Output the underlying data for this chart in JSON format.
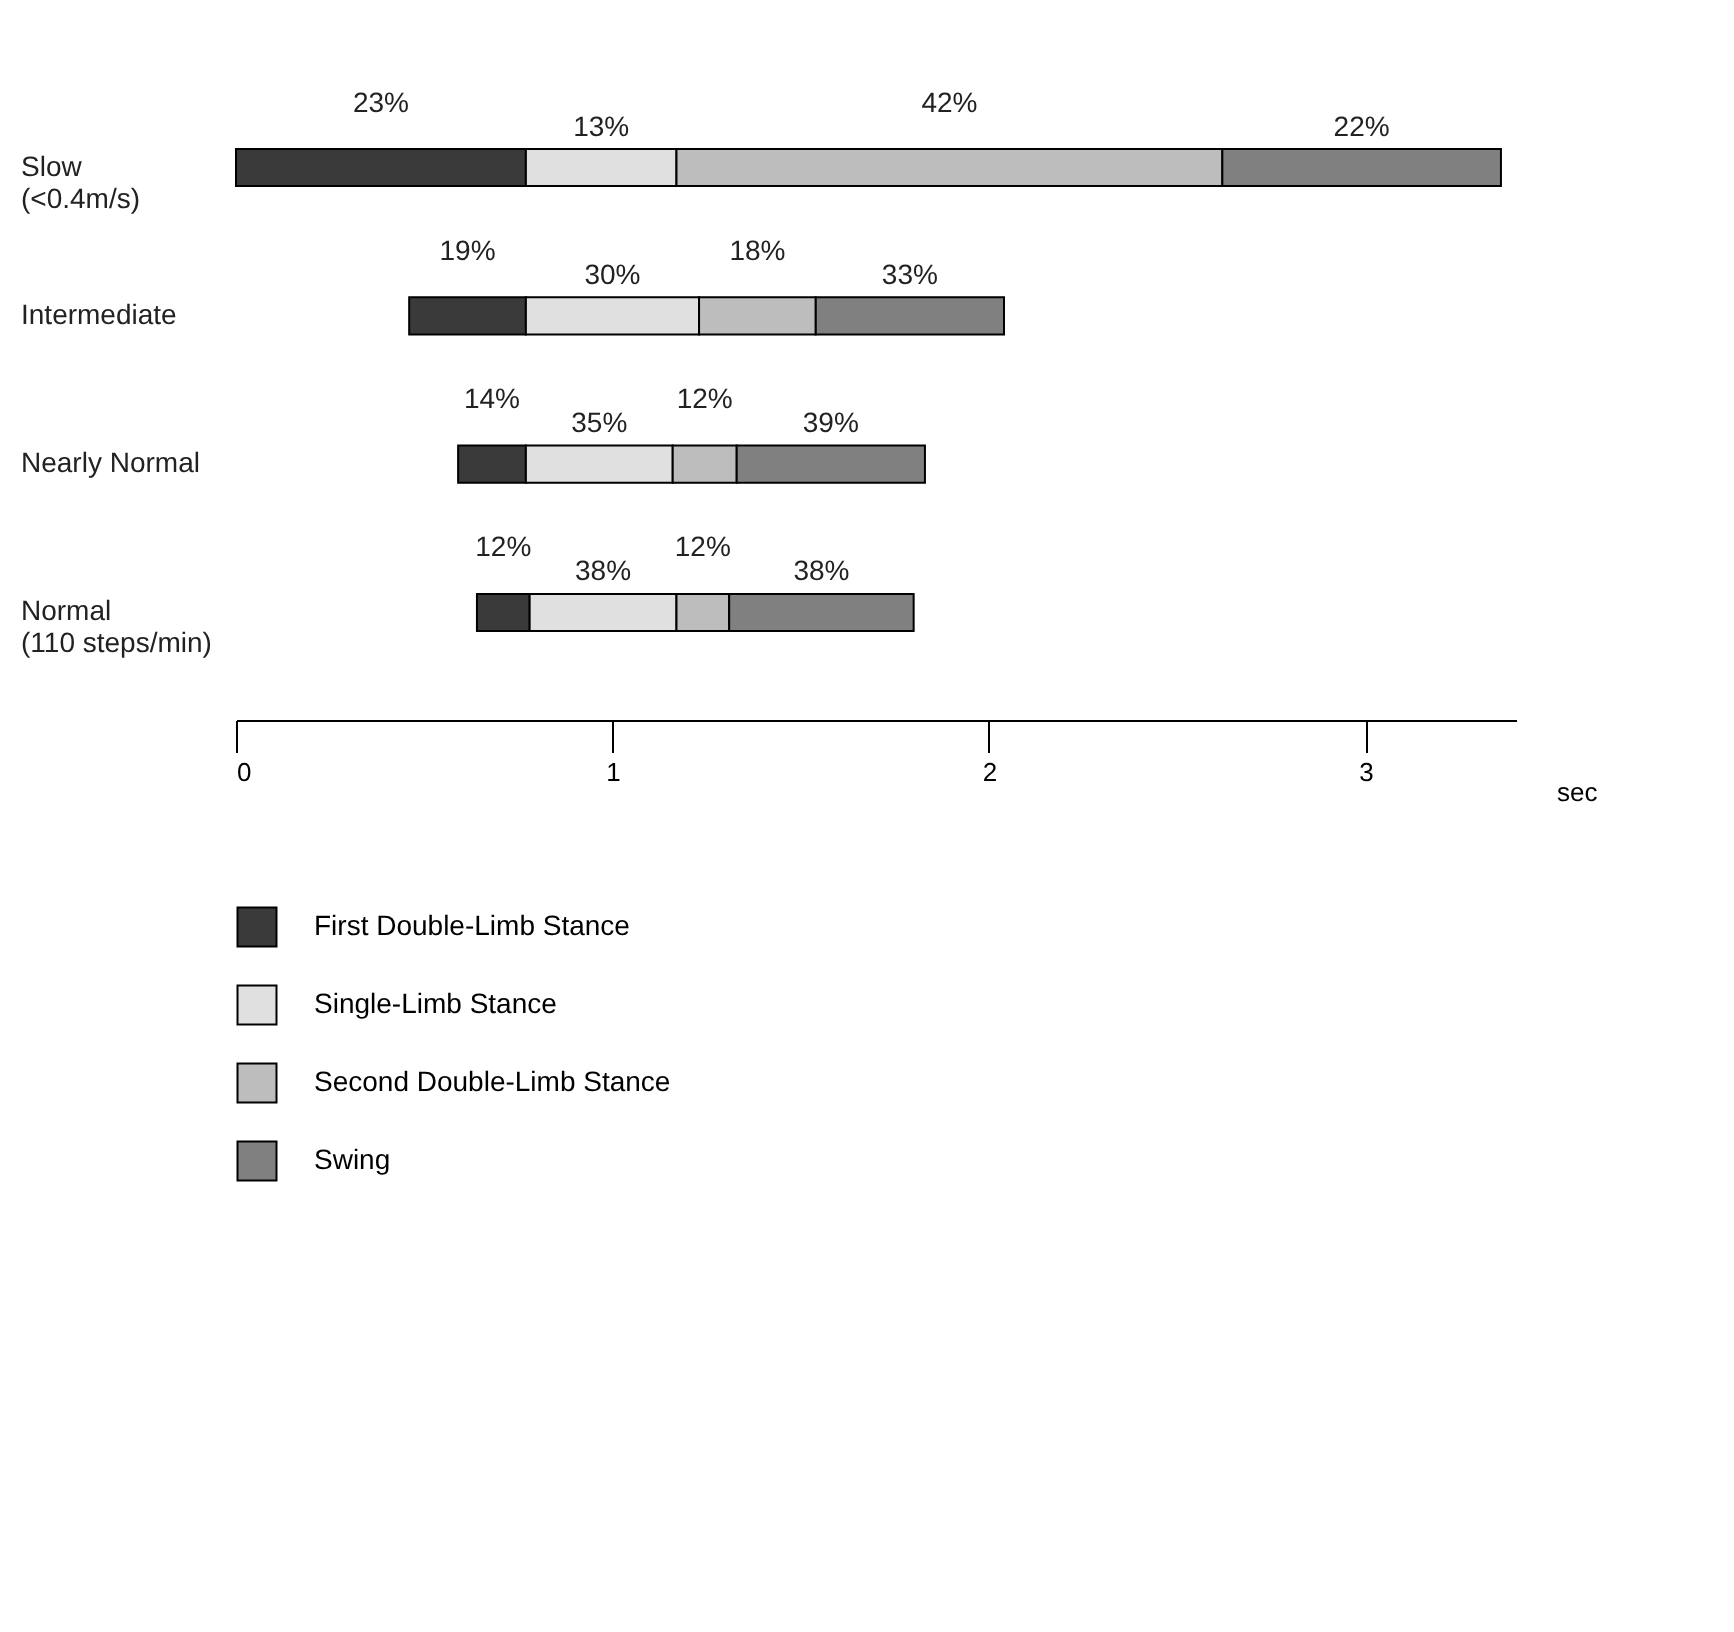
{
  "chart_data": {
    "type": "bar",
    "orientation": "horizontal",
    "xlabel": "sec",
    "categories": [
      "Slow\n(<0.4m/s)",
      "Intermediate",
      "Nearly Normal",
      "Normal\n(110 steps/min)"
    ],
    "series": [
      {
        "name": "First Double-Limb Stance",
        "color": "#3a3a3a",
        "base": [
          0,
          0.46,
          0.59,
          0.64
        ],
        "values": [
          0.77,
          0.31,
          0.18,
          0.14
        ]
      },
      {
        "name": "Single-Limb Stance",
        "color": "#e0e0e0",
        "base": [
          0.77,
          0.77,
          0.77,
          0.78
        ],
        "values": [
          0.4,
          0.46,
          0.39,
          0.39
        ]
      },
      {
        "name": "Second Double-Limb Stance",
        "color": "#bdbdbd",
        "base": [
          1.17,
          1.23,
          1.16,
          1.17
        ],
        "values": [
          1.45,
          0.31,
          0.17,
          0.14
        ]
      },
      {
        "name": "Swing",
        "color": "#808080",
        "base": [
          2.62,
          1.54,
          1.33,
          1.31
        ],
        "values": [
          0.74,
          0.5,
          0.5,
          0.49
        ]
      }
    ],
    "annotations": [
      "23%",
      "13%",
      "42%",
      "22%",
      "19%",
      "30%",
      "18%",
      "33%",
      "14%",
      "35%",
      "12%",
      "39%",
      "12%",
      "38%",
      "12%",
      "38%"
    ],
    "xlim": [
      0,
      3.4
    ],
    "xticks": [
      0,
      1,
      2,
      3
    ],
    "grid": false,
    "legend": "bottom"
  }
}
